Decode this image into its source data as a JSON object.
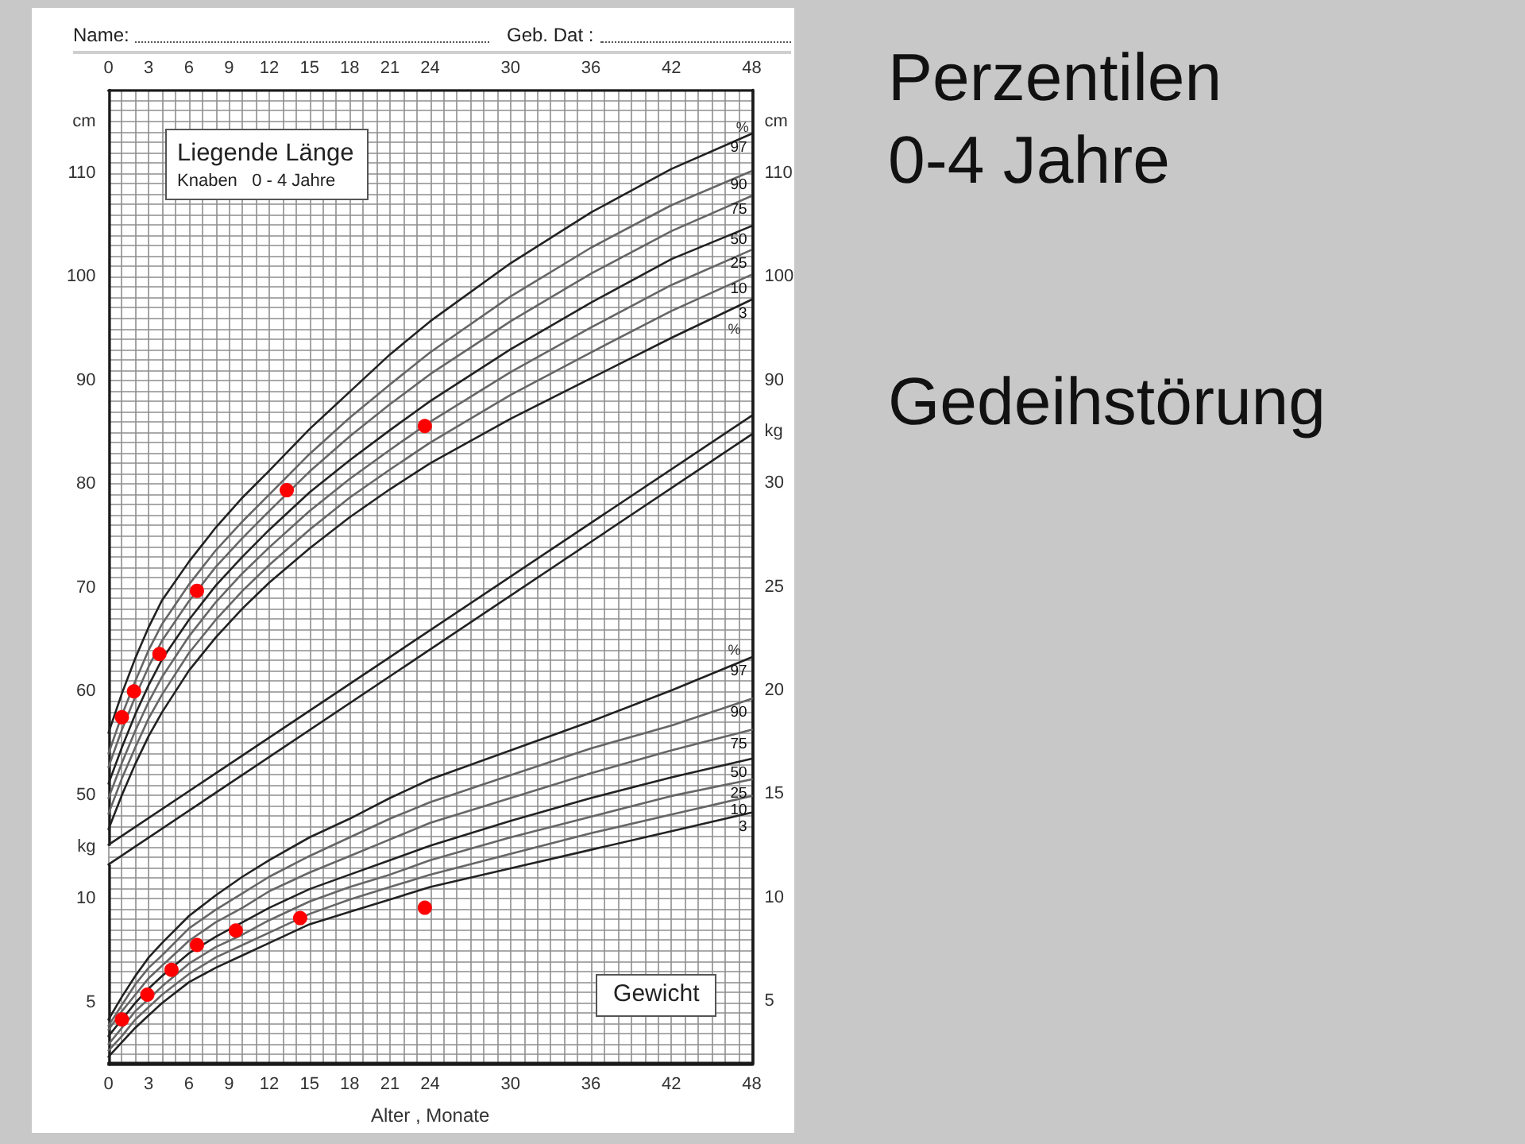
{
  "chart_data": [
    {
      "type": "line",
      "ylabel": "cm",
      "y2label": "cm",
      "annotations": [
        "Name:",
        "Geb. Dat :",
        "Liegende Länge",
        "Knaben   0 - 4 Jahre",
        "%",
        "Perzentilen 0-4 Jahre",
        "Gedeihstörung",
        {
          "text": "%",
          "x": 47.3,
          "y": 114.4
        }
      ],
      "grid": true,
      "marker": "none",
      "xlim": [
        0,
        48
      ],
      "x2lim": [
        0,
        48
      ],
      "x2ticks": [
        0,
        {
          "value": 1,
          "label": null
        },
        {
          "value": 2,
          "label": null
        },
        3,
        {
          "value": 4,
          "label": null
        },
        {
          "value": 5,
          "label": null
        },
        6,
        {
          "value": 7,
          "label": null
        },
        {
          "value": 8,
          "label": null
        },
        9,
        {
          "value": 10,
          "label": null
        },
        {
          "value": 11,
          "label": null
        },
        12,
        {
          "value": 13,
          "label": null
        },
        {
          "value": 14,
          "label": null
        },
        15,
        {
          "value": 16,
          "label": null
        },
        {
          "value": 17,
          "label": null
        },
        18,
        {
          "value": 19,
          "label": null
        },
        {
          "value": 20,
          "label": null
        },
        21,
        {
          "value": 22,
          "label": null
        },
        {
          "value": 23,
          "label": null
        },
        24,
        {
          "value": 25,
          "label": null
        },
        {
          "value": 26,
          "label": null
        },
        {
          "value": 27,
          "label": null
        },
        {
          "value": 28,
          "label": null
        },
        {
          "value": 29,
          "label": null
        },
        30,
        {
          "value": 31,
          "label": null
        },
        {
          "value": 32,
          "label": null
        },
        {
          "value": 33,
          "label": null
        },
        {
          "value": 34,
          "label": null
        },
        {
          "value": 35,
          "label": null
        },
        36,
        {
          "value": 37,
          "label": null
        },
        {
          "value": 38,
          "label": null
        },
        {
          "value": 39,
          "label": null
        },
        {
          "value": 40,
          "label": null
        },
        {
          "value": 41,
          "label": null
        },
        42,
        {
          "value": 43,
          "label": null
        },
        {
          "value": 44,
          "label": null
        },
        {
          "value": 45,
          "label": null
        },
        {
          "value": 46,
          "label": null
        },
        {
          "value": 47,
          "label": null
        },
        48
      ],
      "ylim": [
        45.2,
        118
      ],
      "yticks": [
        50,
        60,
        70,
        80,
        90,
        100,
        110
      ],
      "y2lim": [
        24,
        118
      ],
      "y2ticks": [
        {
          "value": 24,
          "label": null
        },
        {
          "value": 25,
          "label": null
        },
        {
          "value": 26,
          "label": null
        },
        {
          "value": 27,
          "label": null
        },
        {
          "value": 28,
          "label": null
        },
        {
          "value": 29,
          "label": null
        },
        {
          "value": 30,
          "label": null
        },
        {
          "value": 31,
          "label": null
        },
        {
          "value": 32,
          "label": null
        },
        {
          "value": 33,
          "label": null
        },
        {
          "value": 34,
          "label": null
        },
        {
          "value": 35,
          "label": null
        },
        {
          "value": 36,
          "label": null
        },
        {
          "value": 37,
          "label": null
        },
        {
          "value": 38,
          "label": null
        },
        {
          "value": 39,
          "label": null
        },
        {
          "value": 40,
          "label": null
        },
        {
          "value": 41,
          "label": null
        },
        {
          "value": 42,
          "label": null
        },
        {
          "value": 43,
          "label": null
        },
        {
          "value": 44,
          "label": null
        },
        {
          "value": 45,
          "label": null
        },
        {
          "value": 46,
          "label": null
        },
        {
          "value": 47,
          "label": null
        },
        {
          "value": 48,
          "label": null
        },
        {
          "value": 49,
          "label": null
        },
        {
          "value": 50,
          "label": null
        },
        {
          "value": 51,
          "label": null
        },
        {
          "value": 52,
          "label": null
        },
        {
          "value": 53,
          "label": null
        },
        {
          "value": 54,
          "label": null
        },
        {
          "value": 55,
          "label": null
        },
        {
          "value": 56,
          "label": null
        },
        {
          "value": 57,
          "label": null
        },
        {
          "value": 58,
          "label": null
        },
        {
          "value": 59,
          "label": null
        },
        {
          "value": 60,
          "label": null
        },
        {
          "value": 61,
          "label": null
        },
        {
          "value": 62,
          "label": null
        },
        {
          "value": 63,
          "label": null
        },
        {
          "value": 64,
          "label": null
        },
        {
          "value": 65,
          "label": null
        },
        {
          "value": 66,
          "label": null
        },
        {
          "value": 67,
          "label": null
        },
        {
          "value": 68,
          "label": null
        },
        {
          "value": 69,
          "label": null
        },
        {
          "value": 70,
          "label": null
        },
        {
          "value": 71,
          "label": null
        },
        {
          "value": 72,
          "label": null
        },
        {
          "value": 73,
          "label": null
        },
        {
          "value": 74,
          "label": null
        },
        {
          "value": 75,
          "label": null
        },
        {
          "value": 76,
          "label": null
        },
        {
          "value": 77,
          "label": null
        },
        {
          "value": 78,
          "label": null
        },
        {
          "value": 79,
          "label": null
        },
        {
          "value": 80,
          "label": null
        },
        {
          "value": 81,
          "label": null
        },
        {
          "value": 82,
          "label": null
        },
        {
          "value": 83,
          "label": null
        },
        {
          "value": 84,
          "label": null
        },
        {
          "value": 85,
          "label": null
        },
        {
          "value": 86,
          "label": null
        },
        {
          "value": 87,
          "label": null
        },
        {
          "value": 88,
          "label": null
        },
        {
          "value": 89,
          "label": null
        },
        90,
        {
          "value": 91,
          "label": null
        },
        {
          "value": 92,
          "label": null
        },
        {
          "value": 93,
          "label": null
        },
        {
          "value": 94,
          "label": null
        },
        {
          "value": 95,
          "label": null
        },
        {
          "value": 96,
          "label": null
        },
        {
          "value": 97,
          "label": null
        },
        {
          "value": 98,
          "label": null
        },
        {
          "value": 99,
          "label": null
        },
        100,
        {
          "value": 101,
          "label": null
        },
        {
          "value": 102,
          "label": null
        },
        {
          "value": 103,
          "label": null
        },
        {
          "value": 104,
          "label": null
        },
        {
          "value": 105,
          "label": null
        },
        {
          "value": 106,
          "label": null
        },
        {
          "value": 107,
          "label": null
        },
        {
          "value": 108,
          "label": null
        },
        {
          "value": 109,
          "label": null
        },
        110,
        {
          "value": 111,
          "label": null
        },
        {
          "value": 112,
          "label": null
        },
        {
          "value": 113,
          "label": null
        },
        {
          "value": 114,
          "label": null
        },
        {
          "value": 115,
          "label": null
        },
        {
          "value": 116,
          "label": null
        },
        {
          "value": 117,
          "label": null
        },
        {
          "value": 118,
          "label": null
        }
      ],
      "x": [
        0,
        1,
        2,
        3,
        4,
        6,
        8,
        10,
        12,
        15,
        18,
        21,
        24,
        30,
        36,
        42,
        48
      ],
      "series": [
        {
          "name": "97",
          "color": "#222222",
          "values": [
            56.0,
            59.8,
            63.2,
            66.2,
            68.8,
            72.5,
            75.8,
            78.7,
            81.3,
            85.3,
            88.9,
            92.5,
            95.7,
            101.3,
            106.2,
            110.4,
            113.8
          ]
        },
        {
          "name": "90",
          "color": "#666666",
          "values": [
            54.0,
            57.7,
            61.0,
            64.0,
            66.5,
            70.3,
            73.6,
            76.4,
            79.0,
            82.9,
            86.4,
            89.6,
            92.7,
            98.1,
            102.8,
            106.9,
            110.2
          ]
        },
        {
          "name": "75",
          "color": "#666666",
          "values": [
            52.7,
            56.3,
            59.5,
            62.4,
            64.9,
            68.7,
            72.0,
            74.8,
            77.4,
            81.2,
            84.6,
            87.7,
            90.6,
            95.7,
            100.3,
            104.4,
            107.8
          ]
        },
        {
          "name": "50",
          "color": "#222222",
          "values": [
            51.1,
            54.6,
            57.8,
            60.6,
            63.1,
            66.9,
            70.2,
            73.0,
            75.6,
            79.2,
            82.3,
            85.2,
            88.0,
            93.0,
            97.5,
            101.7,
            104.9
          ]
        },
        {
          "name": "25",
          "color": "#666666",
          "values": [
            49.7,
            53.1,
            56.2,
            59.0,
            61.4,
            65.3,
            68.6,
            71.4,
            73.9,
            77.4,
            80.5,
            83.3,
            86.0,
            90.8,
            95.1,
            99.2,
            102.6
          ]
        },
        {
          "name": "10",
          "color": "#666666",
          "values": [
            48.2,
            51.6,
            54.6,
            57.4,
            59.7,
            63.7,
            66.9,
            69.7,
            72.2,
            75.6,
            78.7,
            81.4,
            84.0,
            88.6,
            92.7,
            96.7,
            100.2
          ]
        },
        {
          "name": "3",
          "color": "#222222",
          "values": [
            46.7,
            50.0,
            53.0,
            55.7,
            58.0,
            62.0,
            65.2,
            68.0,
            70.5,
            73.8,
            76.8,
            79.5,
            82.0,
            86.3,
            90.2,
            94.1,
            97.8
          ]
        },
        {
          "color": "#222222",
          "axis": "y2",
          "x": [
            0,
            48
          ],
          "values": [
            43.3,
            84.8
          ]
        },
        {
          "color": "#222222",
          "axis": "y2",
          "x": [
            0,
            48
          ],
          "values": [
            45.2,
            86.6
          ]
        },
        {
          "type": "scatter",
          "color": "#ff0000",
          "marker": "circle",
          "x": [
            1,
            1.9,
            3.8,
            6.6,
            13.3,
            23.6
          ],
          "values": [
            57.5,
            60.0,
            63.6,
            69.7,
            79.4,
            85.6
          ]
        }
      ]
    },
    {
      "type": "line",
      "xlabel": "Alter , Monate",
      "ylabel": "kg",
      "y2label": "kg",
      "annotations": [
        "Gewicht",
        "%"
      ],
      "marker": "none",
      "xlim": [
        0,
        48
      ],
      "xticks": [
        0,
        3,
        6,
        9,
        12,
        15,
        18,
        21,
        24,
        30,
        36,
        42,
        48
      ],
      "ylim": [
        2,
        11.6
      ],
      "yticks": [
        5,
        10
      ],
      "y2lim": [
        2,
        49
      ],
      "y2ticks": [
        5,
        10,
        15,
        20,
        25,
        30
      ],
      "x": [
        0,
        1,
        2,
        3,
        4,
        6,
        8,
        10,
        12,
        15,
        18,
        21,
        24,
        30,
        36,
        42,
        48
      ],
      "series": [
        {
          "name": "97",
          "color": "#222222",
          "axis": "y2",
          "values": [
            4.1,
            5.2,
            6.2,
            7.1,
            7.8,
            9.1,
            10.1,
            11.0,
            11.8,
            12.9,
            13.8,
            14.8,
            15.7,
            17.1,
            18.5,
            20.0,
            21.6
          ]
        },
        {
          "name": "90",
          "color": "#666666",
          "axis": "y2",
          "values": [
            3.8,
            4.8,
            5.8,
            6.6,
            7.2,
            8.5,
            9.4,
            10.2,
            11.0,
            12.0,
            12.9,
            13.8,
            14.6,
            15.9,
            17.2,
            18.3,
            19.6
          ]
        },
        {
          "name": "75",
          "color": "#666666",
          "axis": "y2",
          "values": [
            3.6,
            4.5,
            5.3,
            6.1,
            6.7,
            7.9,
            8.8,
            9.5,
            10.3,
            11.2,
            12.0,
            12.8,
            13.6,
            14.8,
            16.0,
            17.1,
            18.1
          ]
        },
        {
          "name": "50",
          "color": "#222222",
          "axis": "y2",
          "values": [
            3.3,
            4.1,
            4.9,
            5.6,
            6.2,
            7.3,
            8.1,
            8.8,
            9.5,
            10.4,
            11.1,
            11.8,
            12.5,
            13.7,
            14.8,
            15.8,
            16.7
          ]
        },
        {
          "name": "25",
          "color": "#666666",
          "axis": "y2",
          "values": [
            2.9,
            3.7,
            4.5,
            5.1,
            5.7,
            6.8,
            7.6,
            8.2,
            8.9,
            9.8,
            10.5,
            11.1,
            11.8,
            12.9,
            13.9,
            14.9,
            15.7
          ]
        },
        {
          "name": "10",
          "color": "#666666",
          "axis": "y2",
          "values": [
            2.6,
            3.3,
            4.1,
            4.7,
            5.3,
            6.3,
            7.1,
            7.7,
            8.3,
            9.2,
            9.9,
            10.5,
            11.1,
            12.1,
            13.1,
            14.0,
            14.9
          ]
        },
        {
          "name": "3",
          "color": "#222222",
          "axis": "y2",
          "values": [
            2.3,
            3.0,
            3.7,
            4.3,
            4.9,
            5.9,
            6.6,
            7.2,
            7.8,
            8.7,
            9.3,
            9.9,
            10.5,
            11.4,
            12.3,
            13.2,
            14.1
          ]
        },
        {
          "type": "scatter",
          "color": "#ff0000",
          "marker": "circle",
          "axis": "y2",
          "x": [
            1,
            2.9,
            4.7,
            6.6,
            9.5,
            14.3,
            23.6
          ],
          "values": [
            4.1,
            5.3,
            6.5,
            7.7,
            8.4,
            9.0,
            9.5
          ]
        }
      ]
    }
  ]
}
